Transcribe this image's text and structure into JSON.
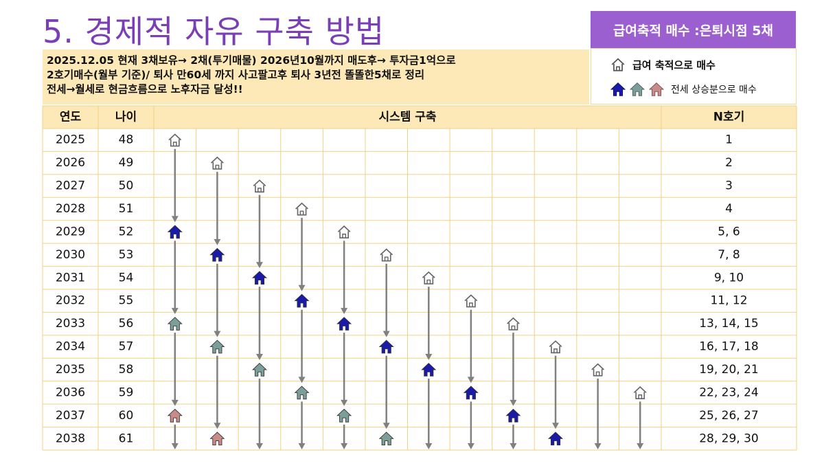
{
  "title": "5. 경제적 자유 구축 방법",
  "badge": "급여축적 매수 :은퇴시점 5채",
  "description": [
    "2025.12.05 현재 3채보유→ 2채(투기매물) 2026년10월까지 매도후→ 투자금1억으로",
    "2호기매수(월부 기준)/  퇴사 만60세 까지 사고팔고후 퇴사 3년전 똘똘한5채로 정리",
    "전세→월세로 현금흐름으로 노후자금 달성!!"
  ],
  "legend": {
    "salary_label": "급여 축적으로 매수",
    "jeonse_label": "전세 상승분으로 매수",
    "colors": {
      "salary": "#8c8c8c",
      "blue": "#1a1aa8",
      "teal": "#7c9e9a",
      "pink": "#c98a8a"
    }
  },
  "table": {
    "headers": {
      "year": "연도",
      "age": "나이",
      "system": "시스템 구축",
      "n": "N호기"
    },
    "rows": [
      {
        "year": "2025",
        "age": "48",
        "n": "1"
      },
      {
        "year": "2026",
        "age": "49",
        "n": "2"
      },
      {
        "year": "2027",
        "age": "50",
        "n": "3"
      },
      {
        "year": "2028",
        "age": "51",
        "n": "4"
      },
      {
        "year": "2029",
        "age": "52",
        "n": "5, 6"
      },
      {
        "year": "2030",
        "age": "53",
        "n": "7, 8"
      },
      {
        "year": "2031",
        "age": "54",
        "n": "9, 10"
      },
      {
        "year": "2032",
        "age": "55",
        "n": "11, 12"
      },
      {
        "year": "2033",
        "age": "56",
        "n": "13, 14, 15"
      },
      {
        "year": "2034",
        "age": "57",
        "n": "16, 17, 18"
      },
      {
        "year": "2035",
        "age": "58",
        "n": "19, 20, 21"
      },
      {
        "year": "2036",
        "age": "59",
        "n": "22, 23, 24"
      },
      {
        "year": "2037",
        "age": "60",
        "n": "25, 26, 27"
      },
      {
        "year": "2038",
        "age": "61",
        "n": "28, 29, 30"
      }
    ],
    "houses": [
      {
        "row": 0,
        "col": 0,
        "type": "outline"
      },
      {
        "row": 1,
        "col": 1,
        "type": "outline"
      },
      {
        "row": 2,
        "col": 2,
        "type": "outline"
      },
      {
        "row": 3,
        "col": 3,
        "type": "outline"
      },
      {
        "row": 4,
        "col": 0,
        "type": "blue"
      },
      {
        "row": 4,
        "col": 4,
        "type": "outline"
      },
      {
        "row": 5,
        "col": 1,
        "type": "blue"
      },
      {
        "row": 5,
        "col": 5,
        "type": "outline"
      },
      {
        "row": 6,
        "col": 2,
        "type": "blue"
      },
      {
        "row": 6,
        "col": 6,
        "type": "outline"
      },
      {
        "row": 7,
        "col": 3,
        "type": "blue"
      },
      {
        "row": 7,
        "col": 7,
        "type": "outline"
      },
      {
        "row": 8,
        "col": 0,
        "type": "teal"
      },
      {
        "row": 8,
        "col": 4,
        "type": "blue"
      },
      {
        "row": 8,
        "col": 8,
        "type": "outline"
      },
      {
        "row": 9,
        "col": 1,
        "type": "teal"
      },
      {
        "row": 9,
        "col": 5,
        "type": "blue"
      },
      {
        "row": 9,
        "col": 9,
        "type": "outline"
      },
      {
        "row": 10,
        "col": 2,
        "type": "teal"
      },
      {
        "row": 10,
        "col": 6,
        "type": "blue"
      },
      {
        "row": 10,
        "col": 10,
        "type": "outline"
      },
      {
        "row": 11,
        "col": 3,
        "type": "teal"
      },
      {
        "row": 11,
        "col": 7,
        "type": "blue"
      },
      {
        "row": 11,
        "col": 11,
        "type": "outline"
      },
      {
        "row": 12,
        "col": 0,
        "type": "pink"
      },
      {
        "row": 12,
        "col": 4,
        "type": "teal"
      },
      {
        "row": 12,
        "col": 8,
        "type": "blue"
      },
      {
        "row": 13,
        "col": 1,
        "type": "pink"
      },
      {
        "row": 13,
        "col": 5,
        "type": "teal"
      },
      {
        "row": 13,
        "col": 9,
        "type": "blue"
      }
    ]
  }
}
